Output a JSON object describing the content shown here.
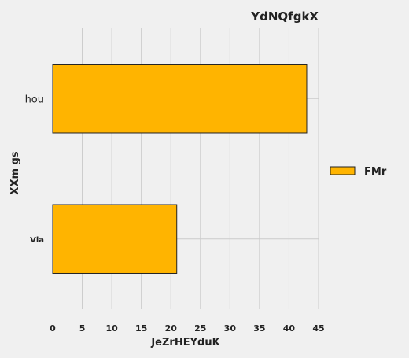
{
  "chart_data": {
    "type": "bar",
    "orientation": "horizontal",
    "title": "YdNQfgkX",
    "xlabel": "JeZrHEYduK",
    "ylabel": "XXm gs",
    "categories": [
      "Vla",
      "hou"
    ],
    "series": [
      {
        "name": "FMr",
        "values": [
          21,
          43
        ],
        "color": "#FFB400"
      }
    ],
    "xlim": [
      0,
      45
    ],
    "xticks": [
      0,
      5,
      10,
      15,
      20,
      25,
      30,
      35,
      40,
      45
    ],
    "grid": true,
    "legend": "right"
  }
}
